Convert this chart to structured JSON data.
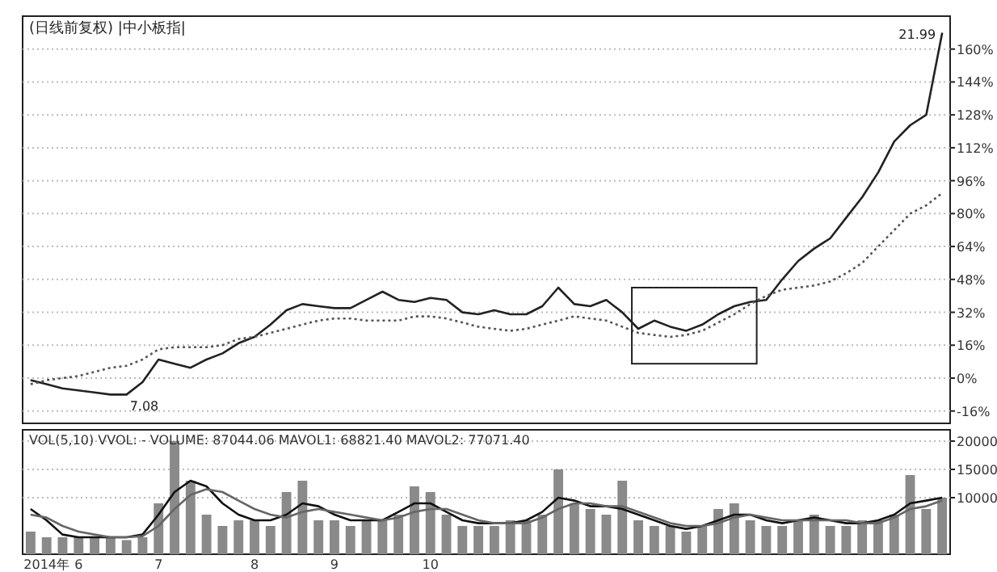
{
  "chart_data": [
    {
      "type": "line",
      "title": "(日线前复权) |中小板指|",
      "categories": [
        null,
        null,
        null,
        null,
        null,
        null,
        null,
        null,
        null,
        null,
        null,
        null,
        null,
        null,
        null,
        null,
        null,
        null,
        null,
        null,
        null,
        null,
        null,
        null,
        null,
        null,
        null,
        null,
        null,
        null,
        null,
        null,
        null,
        null,
        null,
        null,
        null,
        null,
        null,
        null,
        null,
        null,
        null,
        null,
        null,
        null,
        null,
        null,
        null,
        null,
        null,
        null,
        null,
        null,
        null,
        null,
        null,
        null
      ],
      "series": [
        {
          "color": "#222222",
          "line_style": "solid",
          "values": [
            -1,
            -3,
            -5,
            -6,
            -7,
            -8,
            -8,
            -2,
            9,
            7,
            5,
            9,
            12,
            17,
            20,
            26,
            33,
            36,
            35,
            34,
            34,
            38,
            42,
            38,
            37,
            39,
            38,
            32,
            31,
            33,
            31,
            31,
            35,
            44,
            36,
            35,
            38,
            32,
            24,
            28,
            25,
            23,
            26,
            31,
            35,
            37,
            38,
            48,
            57,
            63,
            68,
            78,
            88,
            100,
            115,
            123,
            128,
            168
          ]
        },
        {
          "color": "#555555",
          "line_style": "dotted",
          "values": [
            -3,
            -1,
            0,
            1,
            3,
            5,
            6,
            9,
            14,
            15,
            15,
            15,
            16,
            19,
            20,
            22,
            24,
            26,
            28,
            29,
            29,
            28,
            28,
            28,
            30,
            30,
            29,
            27,
            25,
            24,
            23,
            24,
            26,
            28,
            30,
            29,
            28,
            25,
            22,
            21,
            20,
            21,
            23,
            27,
            31,
            36,
            40,
            43,
            44,
            45,
            47,
            51,
            56,
            64,
            72,
            80,
            84,
            90
          ]
        }
      ],
      "ylim": [
        -22,
        176
      ],
      "yticks": [
        {
          "value": -16,
          "label": "-16%"
        },
        {
          "value": 0,
          "label": "0%"
        },
        {
          "value": 16,
          "label": "16%"
        },
        {
          "value": 32,
          "label": "32%"
        },
        {
          "value": 48,
          "label": "48%"
        },
        {
          "value": 64,
          "label": "64%"
        },
        {
          "value": 80,
          "label": "80%"
        },
        {
          "value": 96,
          "label": "96%"
        },
        {
          "value": 112,
          "label": "112%"
        },
        {
          "value": 128,
          "label": "128%"
        },
        {
          "value": 144,
          "label": "144%"
        },
        {
          "value": 160,
          "label": "160%"
        }
      ],
      "grid": "y",
      "tick_labels": "y",
      "annotations": [
        "21.99",
        "7.08"
      ]
    },
    {
      "type": "bar",
      "categories": [
        null,
        "2014年",
        null,
        "6",
        null,
        null,
        null,
        null,
        "7",
        null,
        null,
        null,
        null,
        null,
        "8",
        null,
        null,
        null,
        null,
        "9",
        null,
        null,
        null,
        null,
        null,
        "10",
        null,
        null,
        null,
        null,
        null,
        null,
        null,
        null,
        null,
        null,
        null,
        null,
        null,
        null,
        null,
        null,
        null,
        null,
        null,
        null,
        null,
        null,
        null,
        null,
        null,
        null,
        null,
        null,
        null,
        null,
        null,
        null
      ],
      "series": [
        {
          "type": "bar",
          "color": "#8a8a8a",
          "values": [
            4000,
            3000,
            3000,
            3000,
            3000,
            3000,
            2500,
            3000,
            9000,
            20000,
            13000,
            7000,
            5000,
            6000,
            6000,
            5000,
            11000,
            13000,
            6000,
            6000,
            5000,
            6000,
            6000,
            7000,
            12000,
            11000,
            7000,
            5000,
            5000,
            5000,
            6000,
            6000,
            7000,
            15000,
            9000,
            8000,
            7000,
            13000,
            6000,
            5000,
            5000,
            4000,
            5000,
            8000,
            9000,
            6000,
            5000,
            5000,
            6000,
            7000,
            5000,
            5000,
            6000,
            6000,
            7000,
            14000,
            8000,
            10000
          ]
        },
        {
          "type": "line",
          "color": "#111111",
          "values": [
            8000,
            6000,
            3500,
            3000,
            3000,
            3000,
            3000,
            3500,
            7000,
            11000,
            13000,
            12000,
            9000,
            7000,
            6000,
            6000,
            7000,
            9000,
            8500,
            7000,
            6000,
            6000,
            6000,
            7500,
            9000,
            9000,
            7500,
            6000,
            5500,
            5500,
            5500,
            6000,
            7500,
            10000,
            9500,
            8500,
            8500,
            8000,
            7000,
            6000,
            5000,
            4500,
            5000,
            6000,
            7000,
            7000,
            6000,
            5500,
            6000,
            6500,
            6000,
            5500,
            5500,
            6000,
            7000,
            9000,
            9500,
            10000
          ]
        },
        {
          "type": "line",
          "color": "#666666",
          "values": [
            7000,
            6500,
            5000,
            4000,
            3500,
            3000,
            3000,
            3200,
            5000,
            8000,
            10500,
            11500,
            11000,
            9500,
            8000,
            7000,
            6500,
            7500,
            8000,
            7500,
            7000,
            6500,
            6000,
            6500,
            7500,
            8000,
            8000,
            7000,
            6000,
            5500,
            5500,
            5500,
            6500,
            8000,
            9000,
            9000,
            8500,
            8500,
            7500,
            6500,
            5500,
            5000,
            5000,
            5500,
            6500,
            7000,
            6500,
            6000,
            6000,
            6000,
            6000,
            6000,
            5500,
            5500,
            6500,
            8000,
            8500,
            9500
          ]
        }
      ],
      "ylim": [
        0,
        22000
      ],
      "yticks": [
        10000,
        15000,
        20000
      ],
      "grid": "y",
      "annotations": [
        "VOL(5,10)  VVOL: -   VOLUME: 87044.06  MAVOL1: 68821.40  MAVOL2: 77071.40"
      ]
    }
  ]
}
